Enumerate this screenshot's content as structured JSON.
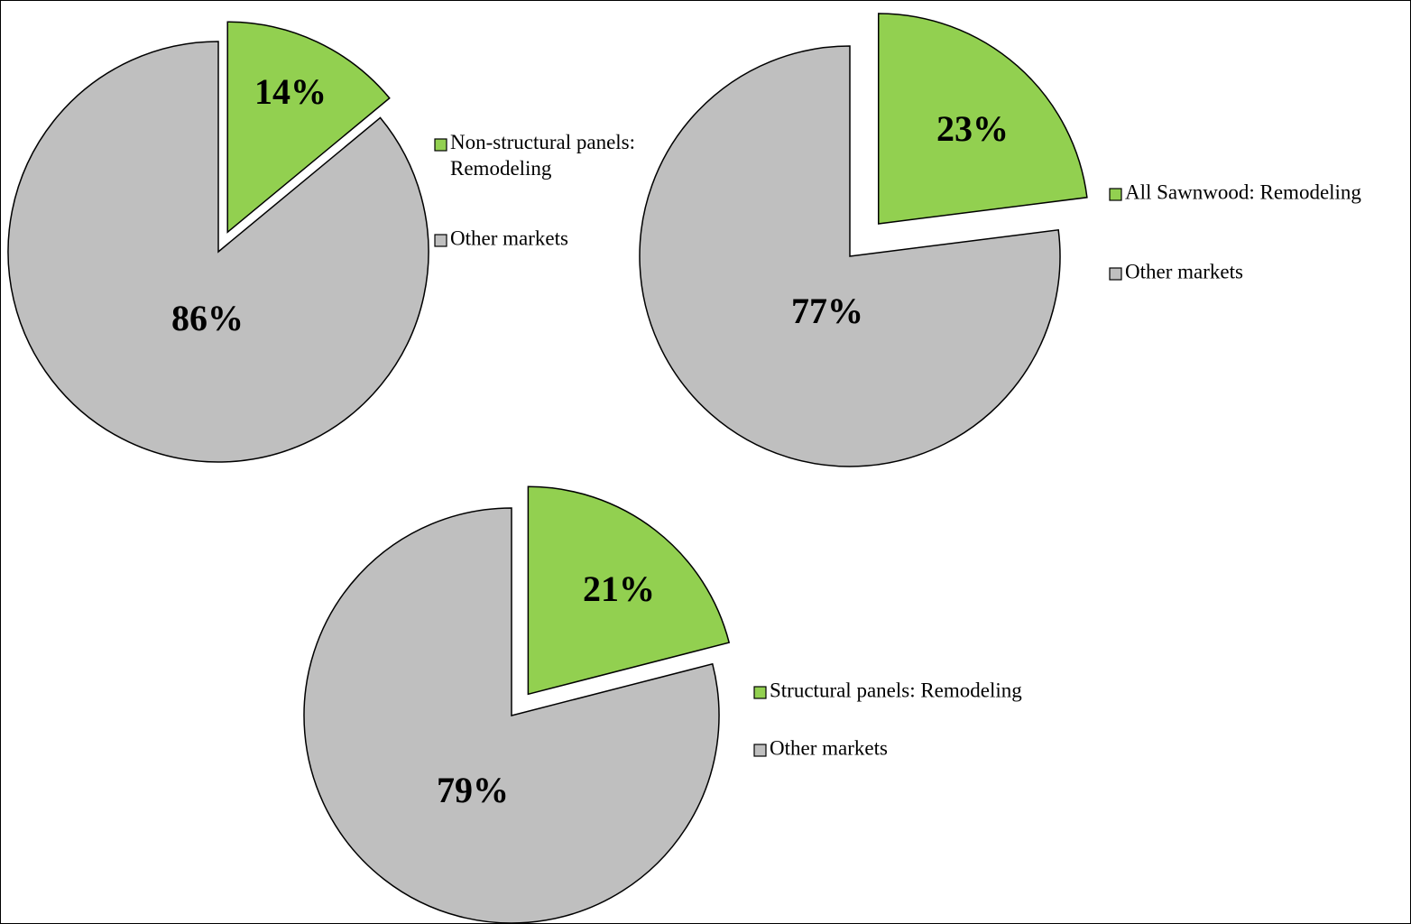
{
  "colors": {
    "highlight": "#92d050",
    "other": "#bfbfbf",
    "outline": "#000000"
  },
  "chart_data": [
    {
      "type": "pie",
      "title": "",
      "labels": [
        "Non-structural panels: Remodeling",
        "Other markets"
      ],
      "values": [
        14,
        86
      ],
      "display_labels": [
        "14%",
        "86%"
      ],
      "legend": [
        "Non-structural panels: Remodeling",
        "Other markets"
      ],
      "colors": [
        "#92d050",
        "#bfbfbf"
      ],
      "exploded": "first",
      "legend_position": "right"
    },
    {
      "type": "pie",
      "title": "",
      "labels": [
        "All Sawnwood: Remodeling",
        "Other markets"
      ],
      "values": [
        23,
        77
      ],
      "display_labels": [
        "23%",
        "77%"
      ],
      "legend": [
        "All Sawnwood: Remodeling",
        "Other markets"
      ],
      "colors": [
        "#92d050",
        "#bfbfbf"
      ],
      "exploded": "first",
      "legend_position": "right"
    },
    {
      "type": "pie",
      "title": "",
      "labels": [
        "Structural panels: Remodeling",
        "Other markets"
      ],
      "values": [
        21,
        79
      ],
      "display_labels": [
        "21%",
        "79%"
      ],
      "legend": [
        "Structural panels: Remodeling",
        "Other markets"
      ],
      "colors": [
        "#92d050",
        "#bfbfbf"
      ],
      "exploded": "first",
      "legend_position": "right"
    }
  ]
}
